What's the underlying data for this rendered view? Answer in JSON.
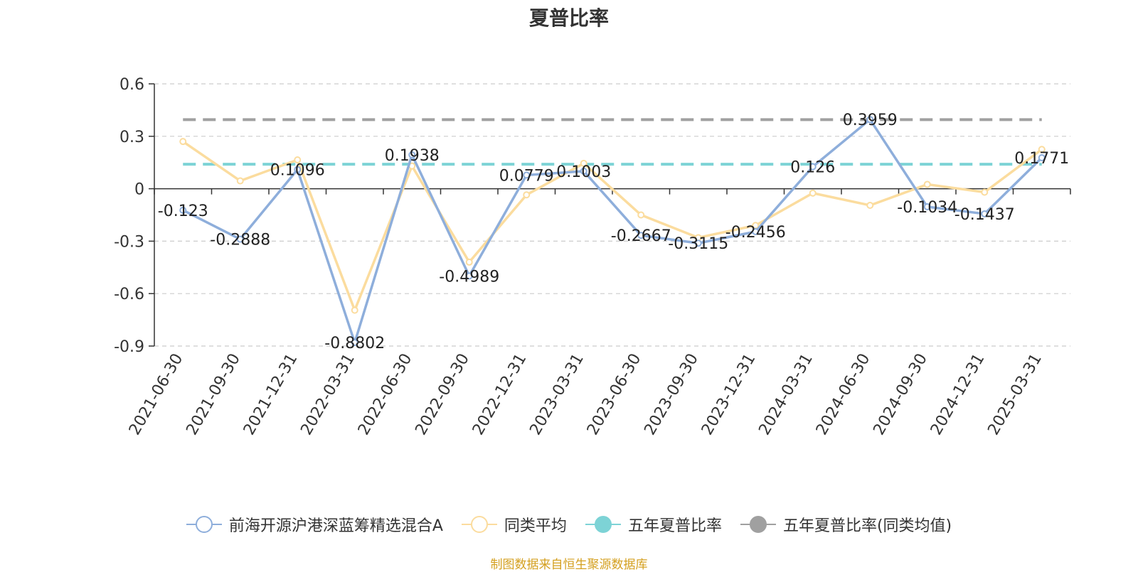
{
  "chart_data": {
    "type": "line",
    "title": "夏普比率",
    "categories": [
      "2021-06-30",
      "2021-09-30",
      "2021-12-31",
      "2022-03-31",
      "2022-06-30",
      "2022-09-30",
      "2022-12-31",
      "2023-03-31",
      "2023-06-30",
      "2023-09-30",
      "2023-12-31",
      "2024-03-31",
      "2024-06-30",
      "2024-09-30",
      "2024-12-31",
      "2025-03-31"
    ],
    "ylim": [
      -0.9,
      0.6
    ],
    "yticks": [
      0.6,
      0.3,
      0,
      -0.3,
      -0.6,
      -0.9
    ],
    "ytick_labels": [
      "0.6",
      "0.3",
      "0",
      "-0.3",
      "-0.6",
      "-0.9"
    ],
    "grid": true,
    "legend_position": "bottom",
    "series": [
      {
        "name": "前海开源沪港深蓝筹精选混合A",
        "color": "#8eaedb",
        "values": [
          -0.123,
          -0.2888,
          0.1096,
          -0.8802,
          0.1938,
          -0.4989,
          0.0779,
          0.1003,
          -0.2667,
          -0.3115,
          -0.2456,
          0.126,
          0.3959,
          -0.1034,
          -0.1437,
          0.1771
        ],
        "labels": [
          "-0.123",
          "-0.2888",
          "0.1096",
          "-0.8802",
          "0.1938",
          "-0.4989",
          "0.0779",
          "0.1003",
          "-0.2667",
          "-0.3115",
          "-0.2456",
          "0.126",
          "0.3959",
          "-0.1034",
          "-0.1437",
          "0.1771"
        ]
      },
      {
        "name": "同类平均",
        "color": "#fbdc9e",
        "values": [
          0.27,
          0.045,
          0.165,
          -0.695,
          0.13,
          -0.42,
          -0.035,
          0.145,
          -0.15,
          -0.28,
          -0.21,
          -0.025,
          -0.095,
          0.025,
          -0.02,
          0.225
        ]
      },
      {
        "name": "五年夏普比率",
        "color": "#7dd3d6",
        "reference": 0.14
      },
      {
        "name": "五年夏普比率(同类均值)",
        "color": "#a0a0a0",
        "reference": 0.395
      }
    ]
  },
  "source": "制图数据来自恒生聚源数据库"
}
